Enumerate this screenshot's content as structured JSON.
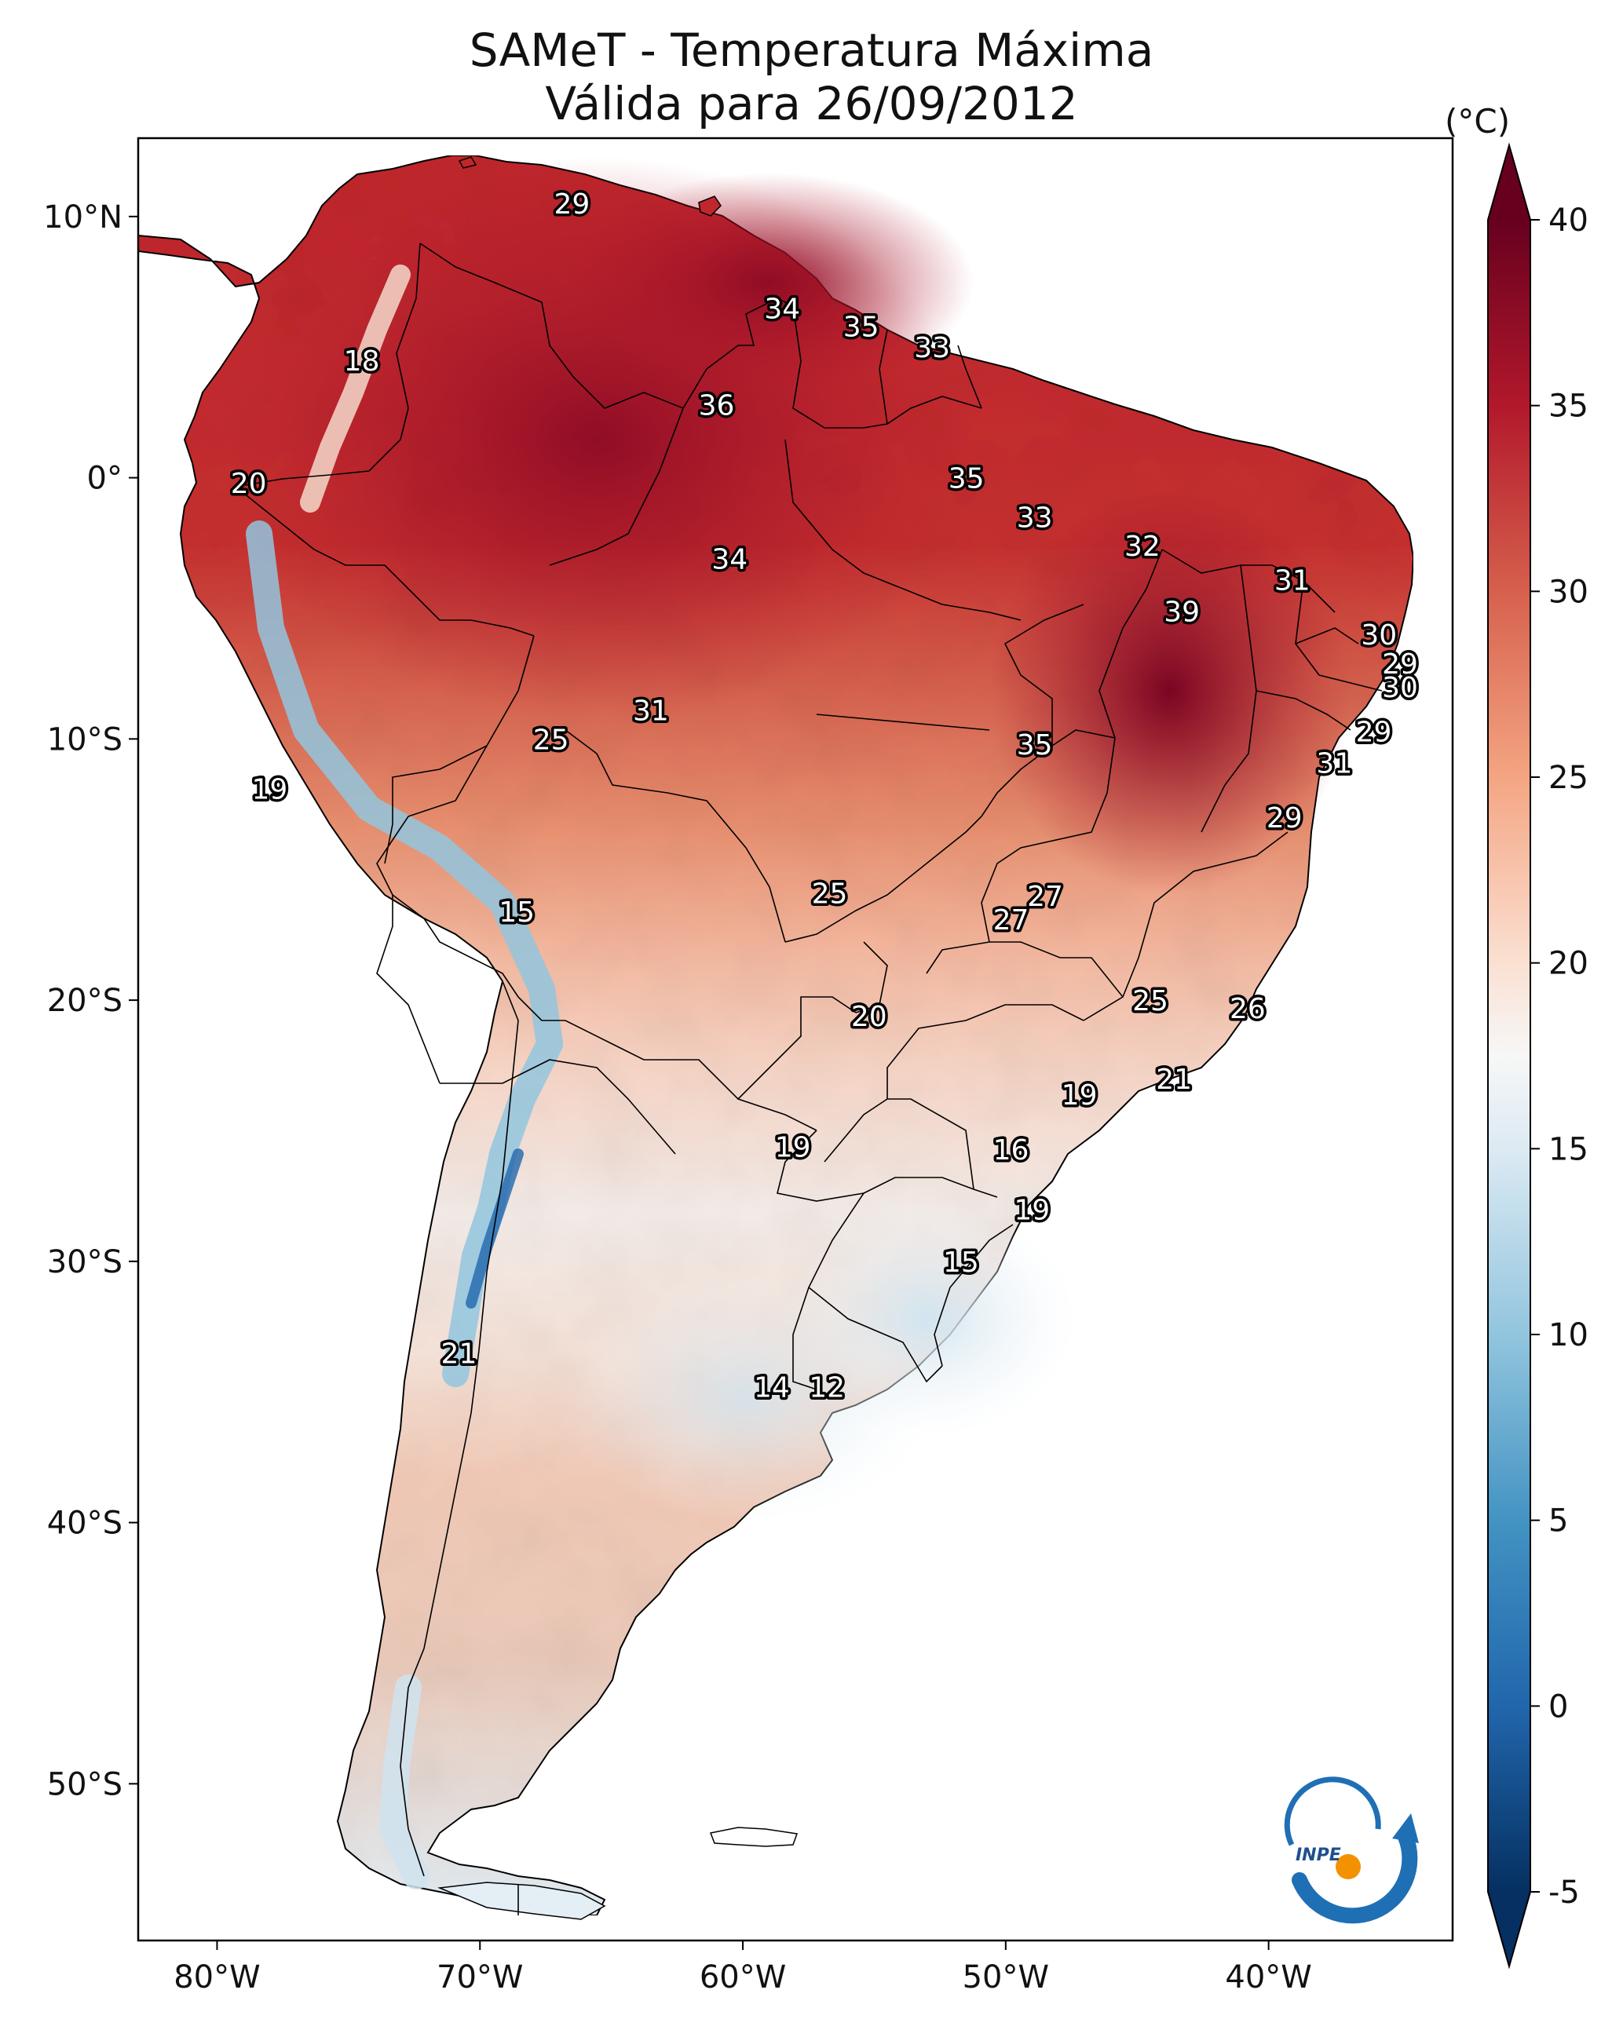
{
  "title_line1": "SAMeT - Temperatura Máxima",
  "title_line2": "Válida para 26/09/2012",
  "colorbar": {
    "unit": "(°C)",
    "min": -5,
    "max": 40,
    "ticks": [
      "40",
      "35",
      "30",
      "25",
      "20",
      "15",
      "10",
      "5",
      "0",
      "-5"
    ],
    "colors": {
      "dark_blue": "#053061",
      "blue": "#2166ac",
      "light_blue": "#92c5de",
      "white": "#f7f7f7",
      "light_red": "#f4a582",
      "red": "#d6604d",
      "dark_red": "#b2182b",
      "darkest_red": "#67001f"
    }
  },
  "axes": {
    "lon_labels": [
      "80°W",
      "70°W",
      "60°W",
      "50°W",
      "40°W"
    ],
    "lat_labels": [
      "10°N",
      "0°",
      "10°S",
      "20°S",
      "30°S",
      "40°S",
      "50°S"
    ],
    "lon_range": [
      -83,
      -33
    ],
    "lat_range": [
      -56,
      13
    ]
  },
  "logo": {
    "text": "INPE"
  },
  "annotations": [
    {
      "label": "29",
      "lon": -66.5,
      "lat": 10.5
    },
    {
      "label": "18",
      "lon": -74.5,
      "lat": 4.5
    },
    {
      "label": "34",
      "lon": -58.5,
      "lat": 6.5
    },
    {
      "label": "35",
      "lon": -55.5,
      "lat": 5.8
    },
    {
      "label": "33",
      "lon": -52.8,
      "lat": 5.0
    },
    {
      "label": "36",
      "lon": -61.0,
      "lat": 2.8
    },
    {
      "label": "20",
      "lon": -78.8,
      "lat": -0.2
    },
    {
      "label": "35",
      "lon": -51.5,
      "lat": 0.0
    },
    {
      "label": "33",
      "lon": -48.9,
      "lat": -1.5
    },
    {
      "label": "34",
      "lon": -60.5,
      "lat": -3.1
    },
    {
      "label": "32",
      "lon": -44.8,
      "lat": -2.6
    },
    {
      "label": "31",
      "lon": -39.1,
      "lat": -3.9
    },
    {
      "label": "39",
      "lon": -43.3,
      "lat": -5.1
    },
    {
      "label": "30",
      "lon": -35.8,
      "lat": -6.0
    },
    {
      "label": "29",
      "lon": -35.0,
      "lat": -7.1
    },
    {
      "label": "30",
      "lon": -35.0,
      "lat": -8.0
    },
    {
      "label": "31",
      "lon": -63.5,
      "lat": -8.9
    },
    {
      "label": "25",
      "lon": -67.3,
      "lat": -10.0
    },
    {
      "label": "35",
      "lon": -48.9,
      "lat": -10.2
    },
    {
      "label": "29",
      "lon": -36.0,
      "lat": -9.7
    },
    {
      "label": "31",
      "lon": -37.5,
      "lat": -10.9
    },
    {
      "label": "19",
      "lon": -78.0,
      "lat": -11.9
    },
    {
      "label": "29",
      "lon": -39.4,
      "lat": -13.0
    },
    {
      "label": "27",
      "lon": -48.5,
      "lat": -16.0
    },
    {
      "label": "25",
      "lon": -56.7,
      "lat": -15.9
    },
    {
      "label": "27",
      "lon": -49.8,
      "lat": -16.9
    },
    {
      "label": "15",
      "lon": -68.6,
      "lat": -16.6
    },
    {
      "label": "25",
      "lon": -44.5,
      "lat": -20.0
    },
    {
      "label": "26",
      "lon": -40.8,
      "lat": -20.3
    },
    {
      "label": "20",
      "lon": -55.2,
      "lat": -20.6
    },
    {
      "label": "21",
      "lon": -43.6,
      "lat": -23.0
    },
    {
      "label": "19",
      "lon": -47.2,
      "lat": -23.6
    },
    {
      "label": "19",
      "lon": -58.1,
      "lat": -25.6
    },
    {
      "label": "16",
      "lon": -49.8,
      "lat": -25.7
    },
    {
      "label": "19",
      "lon": -49.0,
      "lat": -28.0
    },
    {
      "label": "15",
      "lon": -51.7,
      "lat": -30.0
    },
    {
      "label": "21",
      "lon": -70.8,
      "lat": -33.5
    },
    {
      "label": "14",
      "lon": -58.9,
      "lat": -34.8
    },
    {
      "label": "12",
      "lon": -56.8,
      "lat": -34.8
    }
  ]
}
